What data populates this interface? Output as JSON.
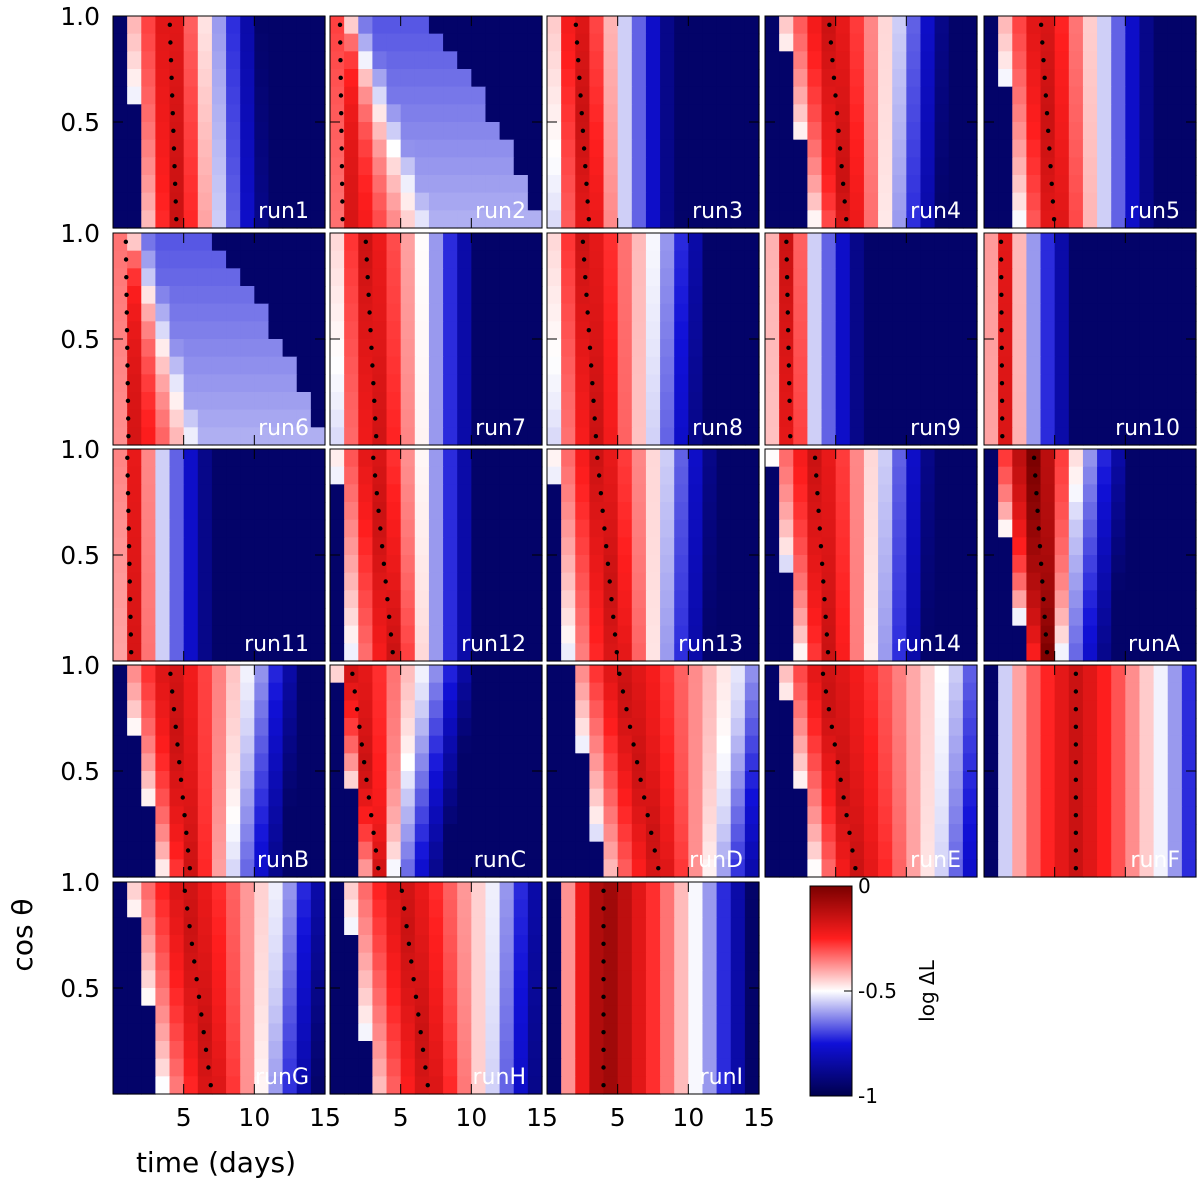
{
  "chart_data": {
    "type": "heatmap",
    "xlabel": "time (days)",
    "ylabel": "cos θ",
    "xlim": [
      0,
      15
    ],
    "ylim": [
      0,
      1
    ],
    "x_ticks": [
      5,
      10,
      15
    ],
    "x_tick_labels": [
      "5",
      "10",
      "15"
    ],
    "y_ticks": [
      0.5,
      1.0
    ],
    "y_tick_labels": [
      "0.5",
      "1.0"
    ],
    "colorbar": {
      "label": "log ΔL",
      "range": [
        -1,
        0
      ],
      "ticks": [
        0,
        -0.5,
        -1
      ],
      "tick_labels": [
        "0",
        "-0.5",
        "-1"
      ],
      "colormap": [
        "#00004d",
        "#1010d8",
        "#ffffff",
        "#ff1e1e",
        "#7a0000"
      ]
    },
    "panels": [
      {
        "name": "run1",
        "peak_top": 4.0,
        "peak_bottom": 4.5,
        "start_top": 1.0,
        "start_bottom": 2.2,
        "end_top": 7.0,
        "end_bottom": 7.5,
        "tail": 0
      },
      {
        "name": "run2",
        "peak_top": 0.7,
        "peak_bottom": 0.9,
        "start_top": 0.3,
        "start_bottom": 0.3,
        "end_top": 1.5,
        "end_bottom": 7.0,
        "tail": 0.55
      },
      {
        "name": "run3",
        "peak_top": 2.0,
        "peak_bottom": 3.0,
        "start_top": 0.3,
        "start_bottom": 0.5,
        "end_top": 5.5,
        "end_bottom": 5.5,
        "tail": 0
      },
      {
        "name": "run4",
        "peak_top": 4.5,
        "peak_bottom": 5.8,
        "start_top": 1.0,
        "start_bottom": 3.5,
        "end_top": 9.5,
        "end_bottom": 9.0,
        "tail": 0
      },
      {
        "name": "run5",
        "peak_top": 4.0,
        "peak_bottom": 5.0,
        "start_top": 1.0,
        "start_bottom": 2.5,
        "end_top": 8.5,
        "end_bottom": 8.5,
        "tail": 0
      },
      {
        "name": "run6",
        "peak_top": 0.9,
        "peak_bottom": 1.1,
        "start_top": 0.3,
        "start_bottom": 0.3,
        "end_top": 1.5,
        "end_bottom": 6.0,
        "tail": 0.5
      },
      {
        "name": "run7",
        "peak_top": 2.5,
        "peak_bottom": 3.3,
        "start_top": 0.3,
        "start_bottom": 0.5,
        "end_top": 7.0,
        "end_bottom": 7.0,
        "tail": 0
      },
      {
        "name": "run8",
        "peak_top": 2.5,
        "peak_bottom": 3.5,
        "start_top": 0.3,
        "start_bottom": 0.5,
        "end_top": 8.0,
        "end_bottom": 7.5,
        "tail": 0
      },
      {
        "name": "run9",
        "peak_top": 1.5,
        "peak_bottom": 1.8,
        "start_top": 0.3,
        "start_bottom": 0.3,
        "end_top": 3.5,
        "end_bottom": 3.5,
        "tail": 0
      },
      {
        "name": "run10",
        "peak_top": 1.2,
        "peak_bottom": 1.3,
        "start_top": 0.3,
        "start_bottom": 0.3,
        "end_top": 3.0,
        "end_bottom": 3.0,
        "tail": 0
      },
      {
        "name": "run11",
        "peak_top": 1.0,
        "peak_bottom": 1.3,
        "start_top": 0.3,
        "start_bottom": 0.3,
        "end_top": 3.5,
        "end_bottom": 3.5,
        "tail": 0
      },
      {
        "name": "run12",
        "peak_top": 3.0,
        "peak_bottom": 4.5,
        "start_top": 0.3,
        "start_bottom": 1.5,
        "end_top": 7.0,
        "end_bottom": 7.0,
        "tail": 0
      },
      {
        "name": "run13",
        "peak_top": 3.5,
        "peak_bottom": 5.0,
        "start_top": 0.3,
        "start_bottom": 1.5,
        "end_top": 8.5,
        "end_bottom": 8.0,
        "tail": 0
      },
      {
        "name": "run14",
        "peak_top": 3.5,
        "peak_bottom": 4.5,
        "start_top": 0.3,
        "start_bottom": 2.5,
        "end_top": 8.5,
        "end_bottom": 8.0,
        "tail": 0
      },
      {
        "name": "runA",
        "peak_top": 3.5,
        "peak_bottom": 4.5,
        "start_top": 0.5,
        "start_bottom": 3.0,
        "end_top": 7.0,
        "end_bottom": 5.5,
        "tail": 0,
        "max_bright": 1.0
      },
      {
        "name": "runB",
        "peak_top": 4.0,
        "peak_bottom": 5.5,
        "start_top": 0.5,
        "start_bottom": 3.5,
        "end_top": 10.0,
        "end_bottom": 8.5,
        "tail": 0
      },
      {
        "name": "runC",
        "peak_top": 1.5,
        "peak_bottom": 3.5,
        "start_top": 0.3,
        "start_bottom": 2.3,
        "end_top": 7.0,
        "end_bottom": 4.5,
        "tail": 0
      },
      {
        "name": "runD",
        "peak_top": 5.0,
        "peak_bottom": 8.0,
        "start_top": 1.5,
        "start_bottom": 4.0,
        "end_top": 14.0,
        "end_bottom": 12.0,
        "tail": 0
      },
      {
        "name": "runE",
        "peak_top": 4.0,
        "peak_bottom": 6.5,
        "start_top": 1.0,
        "start_bottom": 3.5,
        "end_top": 13.5,
        "end_bottom": 12.5,
        "tail": 0
      },
      {
        "name": "runF",
        "peak_top": 6.5,
        "peak_bottom": 6.5,
        "start_top": 1.5,
        "start_bottom": 1.5,
        "end_top": 13.0,
        "end_bottom": 13.0,
        "tail": 0
      },
      {
        "name": "runG",
        "peak_top": 5.0,
        "peak_bottom": 7.0,
        "start_top": 1.0,
        "start_bottom": 3.5,
        "end_top": 12.0,
        "end_bottom": 11.0,
        "tail": 0
      },
      {
        "name": "runH",
        "peak_top": 5.0,
        "peak_bottom": 7.0,
        "start_top": 1.0,
        "start_bottom": 3.0,
        "end_top": 12.0,
        "end_bottom": 11.5,
        "tail": 0
      },
      {
        "name": "runI",
        "peak_top": 4.0,
        "peak_bottom": 4.0,
        "start_top": 1.0,
        "start_bottom": 1.0,
        "end_top": 11.0,
        "end_bottom": 11.0,
        "tail": 0,
        "max_bright": 0.95
      }
    ]
  }
}
